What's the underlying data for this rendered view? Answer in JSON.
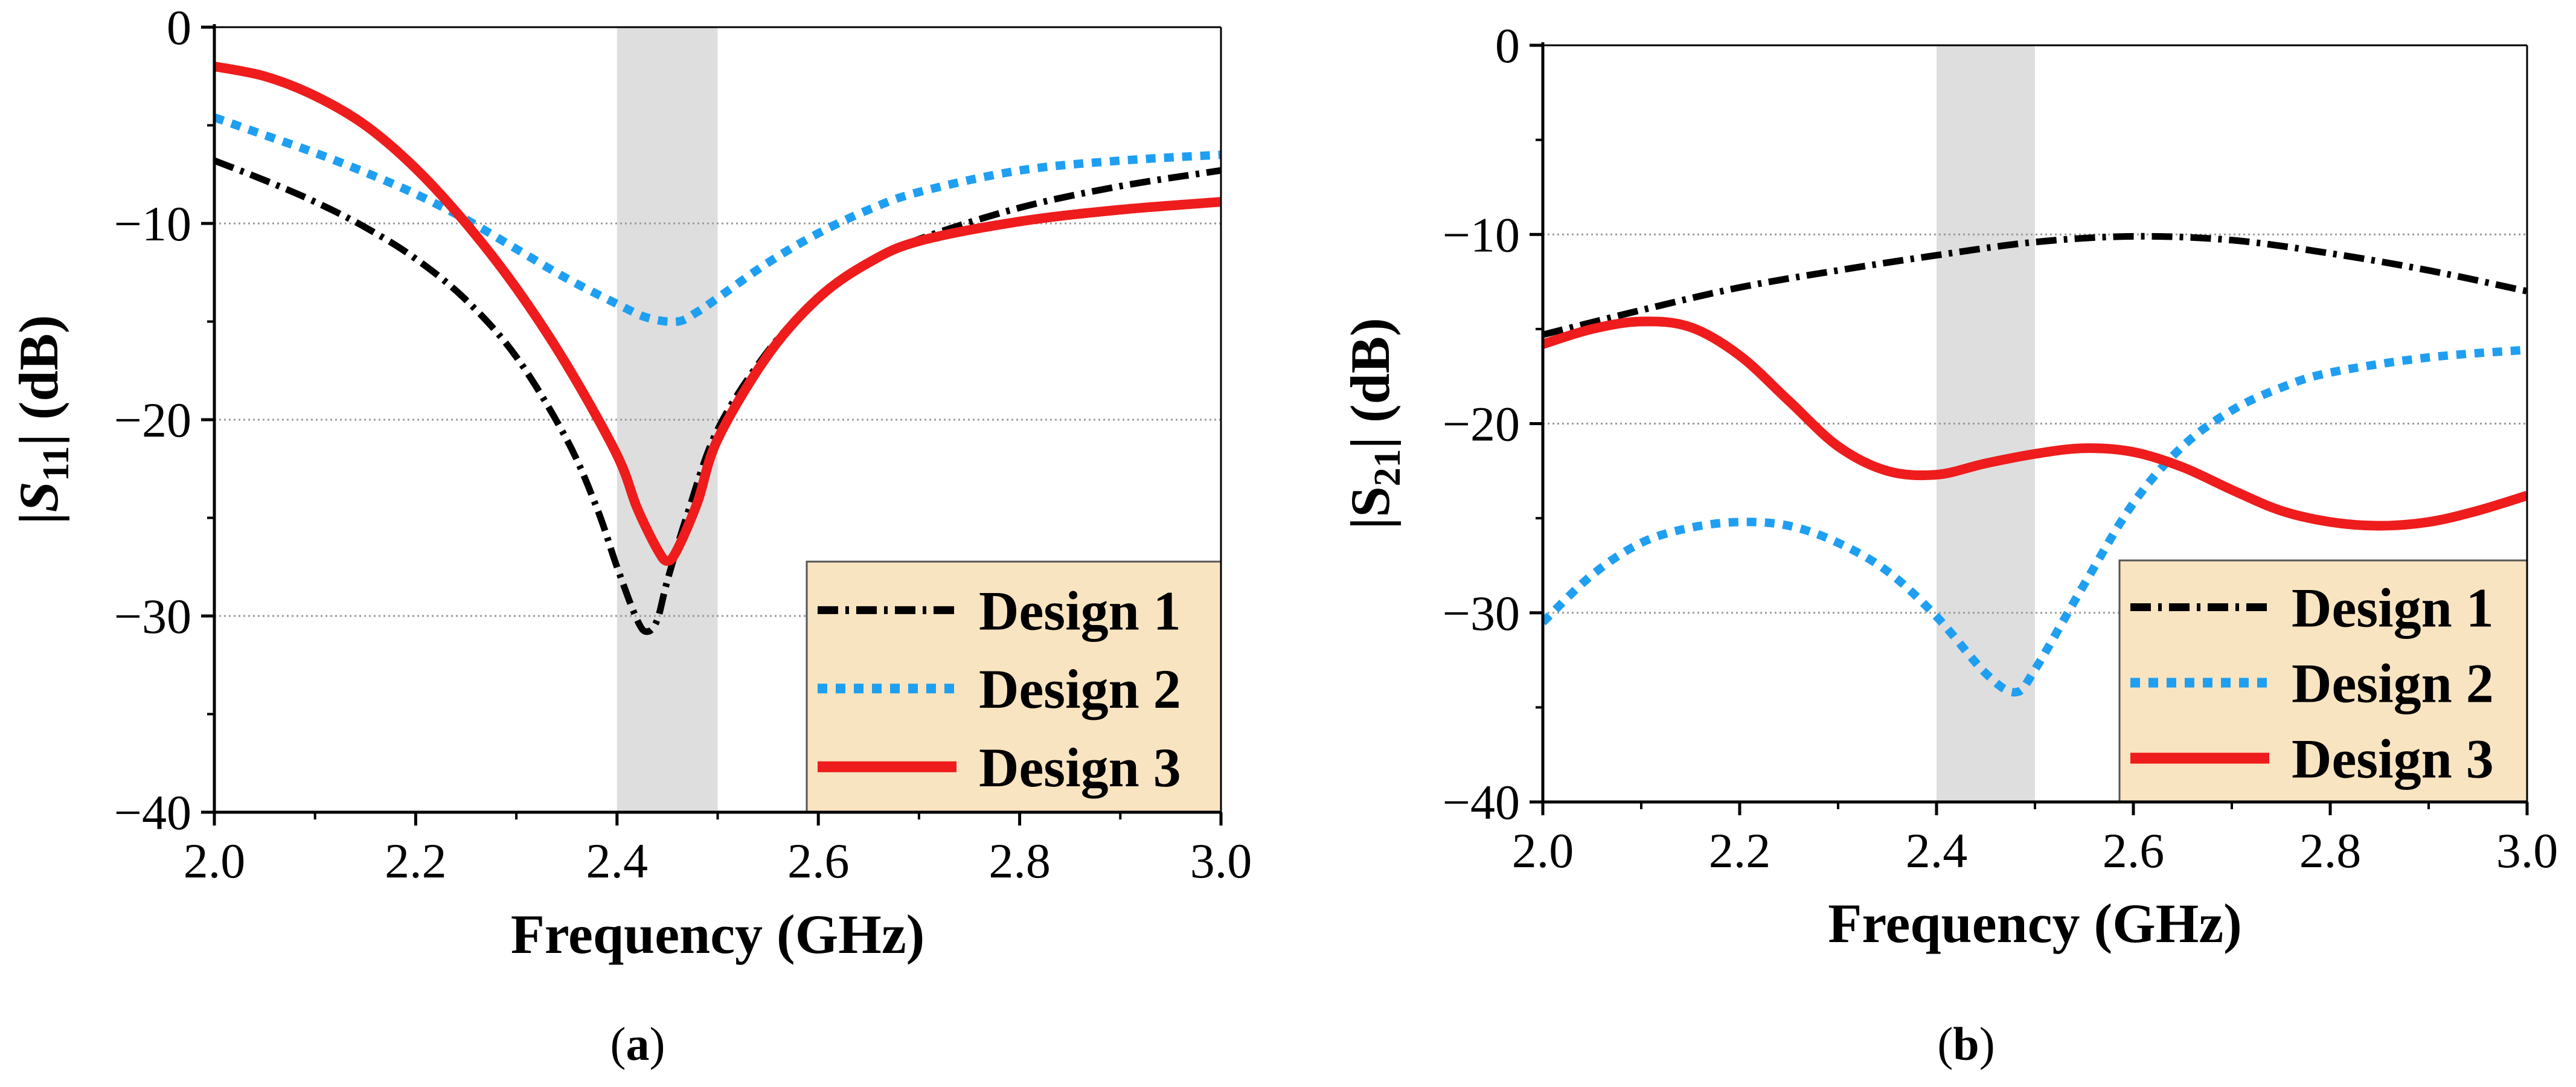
{
  "chart_data": [
    {
      "type": "line",
      "panel_label": "a",
      "xlabel": "Frequency (GHz)",
      "ylabel": {
        "prefix": "|",
        "var": "S",
        "sub": "11",
        "suffix": "| (dB)"
      },
      "xlim": [
        2.0,
        3.0
      ],
      "ylim": [
        -40,
        0
      ],
      "x_ticks": [
        2.0,
        2.2,
        2.4,
        2.6,
        2.8,
        3.0
      ],
      "x_tick_labels": [
        "2.0",
        "2.2",
        "2.4",
        "2.6",
        "2.8",
        "3.0"
      ],
      "y_ticks": [
        0,
        -10,
        -20,
        -30,
        -40
      ],
      "y_tick_labels": [
        "0",
        "−10",
        "−20",
        "−30",
        "−40"
      ],
      "grid_y": [
        -10,
        -20,
        -30
      ],
      "shaded_band": [
        2.4,
        2.5
      ],
      "legend_position": "bottom-right",
      "series": [
        {
          "name": "Design 1",
          "color": "#000000",
          "dash": "dashdot",
          "x": [
            2.0,
            2.05,
            2.1,
            2.15,
            2.2,
            2.25,
            2.3,
            2.35,
            2.38,
            2.4,
            2.42,
            2.43,
            2.44,
            2.45,
            2.47,
            2.5,
            2.55,
            2.6,
            2.65,
            2.7,
            2.8,
            2.9,
            3.0
          ],
          "y": [
            -6.8,
            -7.8,
            -8.9,
            -10.2,
            -11.8,
            -13.9,
            -16.8,
            -21.0,
            -24.5,
            -27.5,
            -30.2,
            -30.8,
            -30.2,
            -28.2,
            -24.8,
            -20.5,
            -16.5,
            -13.8,
            -12.0,
            -10.8,
            -9.2,
            -8.1,
            -7.3
          ]
        },
        {
          "name": "Design 2",
          "color": "#1f9ff2",
          "dash": "dotted",
          "x": [
            2.0,
            2.05,
            2.1,
            2.15,
            2.2,
            2.25,
            2.3,
            2.35,
            2.4,
            2.43,
            2.46,
            2.48,
            2.5,
            2.55,
            2.6,
            2.65,
            2.7,
            2.8,
            2.9,
            3.0
          ],
          "y": [
            -4.6,
            -5.5,
            -6.4,
            -7.4,
            -8.5,
            -9.8,
            -11.3,
            -12.8,
            -14.1,
            -14.8,
            -15.0,
            -14.5,
            -13.8,
            -12.0,
            -10.5,
            -9.3,
            -8.4,
            -7.3,
            -6.8,
            -6.5
          ]
        },
        {
          "name": "Design 3",
          "color": "#ee1c1c",
          "dash": "solid",
          "x": [
            2.0,
            2.05,
            2.1,
            2.15,
            2.2,
            2.25,
            2.3,
            2.35,
            2.4,
            2.42,
            2.44,
            2.45,
            2.46,
            2.48,
            2.5,
            2.55,
            2.6,
            2.65,
            2.7,
            2.8,
            2.9,
            3.0
          ],
          "y": [
            -2.0,
            -2.5,
            -3.5,
            -5.0,
            -7.2,
            -10.0,
            -13.3,
            -17.2,
            -21.8,
            -24.5,
            -26.6,
            -27.2,
            -26.6,
            -24.2,
            -21.0,
            -16.7,
            -13.8,
            -12.0,
            -10.9,
            -9.9,
            -9.3,
            -8.9
          ]
        }
      ]
    },
    {
      "type": "line",
      "panel_label": "b",
      "xlabel": "Frequency (GHz)",
      "ylabel": {
        "prefix": "|S",
        "var": "",
        "sub": "21",
        "suffix": "| (dB)"
      },
      "xlim": [
        2.0,
        3.0
      ],
      "ylim": [
        -40,
        0
      ],
      "x_ticks": [
        2.0,
        2.2,
        2.4,
        2.6,
        2.8,
        3.0
      ],
      "x_tick_labels": [
        "2.0",
        "2.2",
        "2.4",
        "2.6",
        "2.8",
        "3.0"
      ],
      "y_ticks": [
        0,
        -10,
        -20,
        -30,
        -40
      ],
      "y_tick_labels": [
        "0",
        "−10",
        "−20",
        "−30",
        "−40"
      ],
      "grid_y": [
        -10,
        -20,
        -30
      ],
      "shaded_band": [
        2.4,
        2.5
      ],
      "legend_position": "bottom-right",
      "series": [
        {
          "name": "Design 1",
          "color": "#000000",
          "dash": "dashdot",
          "x": [
            2.0,
            2.1,
            2.2,
            2.3,
            2.4,
            2.5,
            2.6,
            2.7,
            2.8,
            2.9,
            3.0
          ],
          "y": [
            -15.3,
            -14.0,
            -12.8,
            -11.9,
            -11.1,
            -10.4,
            -10.1,
            -10.3,
            -11.0,
            -11.9,
            -13.0
          ]
        },
        {
          "name": "Design 2",
          "color": "#1f9ff2",
          "dash": "dotted",
          "x": [
            2.0,
            2.05,
            2.1,
            2.15,
            2.2,
            2.25,
            2.3,
            2.35,
            2.4,
            2.45,
            2.48,
            2.5,
            2.55,
            2.6,
            2.65,
            2.7,
            2.75,
            2.8,
            2.9,
            3.0
          ],
          "y": [
            -30.5,
            -28.0,
            -26.3,
            -25.5,
            -25.2,
            -25.4,
            -26.3,
            -27.8,
            -30.2,
            -33.2,
            -34.2,
            -33.0,
            -28.5,
            -24.2,
            -21.2,
            -19.3,
            -18.1,
            -17.3,
            -16.5,
            -16.1
          ]
        },
        {
          "name": "Design 3",
          "color": "#ee1c1c",
          "dash": "solid",
          "x": [
            2.0,
            2.05,
            2.1,
            2.15,
            2.2,
            2.25,
            2.3,
            2.35,
            2.4,
            2.45,
            2.5,
            2.55,
            2.6,
            2.65,
            2.7,
            2.75,
            2.8,
            2.85,
            2.9,
            2.95,
            3.0
          ],
          "y": [
            -15.8,
            -15.0,
            -14.6,
            -14.9,
            -16.4,
            -18.8,
            -21.2,
            -22.5,
            -22.7,
            -22.1,
            -21.6,
            -21.3,
            -21.5,
            -22.3,
            -23.5,
            -24.6,
            -25.2,
            -25.4,
            -25.2,
            -24.6,
            -23.8
          ]
        }
      ]
    }
  ]
}
